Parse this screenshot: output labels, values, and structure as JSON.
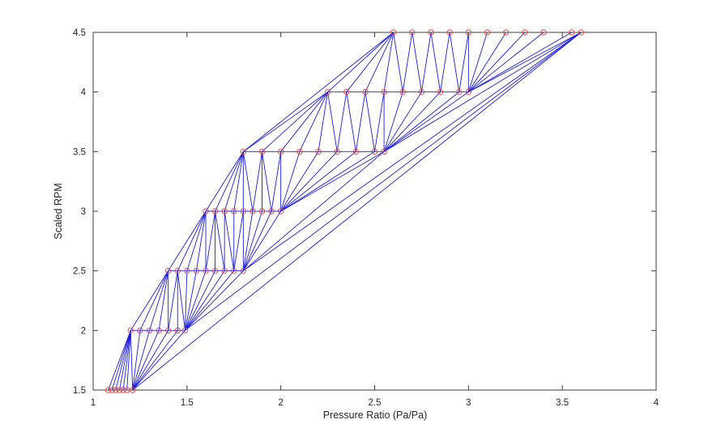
{
  "chart_data": {
    "type": "scatter",
    "subtype": "triangulated-mesh",
    "title": "",
    "xlabel": "Pressure Ratio (Pa/Pa)",
    "ylabel": "Scaled RPM",
    "xlim": [
      1,
      4
    ],
    "ylim": [
      1.5,
      4.5
    ],
    "xticks": [
      1,
      1.5,
      2,
      2.5,
      3,
      3.5,
      4
    ],
    "yticks": [
      1.5,
      2,
      2.5,
      3,
      3.5,
      4,
      4.5
    ],
    "grid": false,
    "legend": null,
    "axis_color": "#3c3c3c",
    "line": {
      "color": "#1c1cd8",
      "width": 0.9
    },
    "marker": {
      "shape": "circle-open",
      "color": "#e05252",
      "radius": 3.2
    },
    "series": [
      {
        "rpm": 1.5,
        "pressure_ratio": [
          1.08,
          1.1,
          1.12,
          1.14,
          1.16,
          1.18,
          1.21
        ]
      },
      {
        "rpm": 2.0,
        "pressure_ratio": [
          1.2,
          1.25,
          1.3,
          1.35,
          1.4,
          1.45,
          1.49
        ]
      },
      {
        "rpm": 2.5,
        "pressure_ratio": [
          1.4,
          1.45,
          1.5,
          1.55,
          1.6,
          1.65,
          1.7,
          1.75,
          1.8
        ]
      },
      {
        "rpm": 3.0,
        "pressure_ratio": [
          1.6,
          1.65,
          1.7,
          1.75,
          1.8,
          1.85,
          1.9,
          1.95,
          2.0
        ]
      },
      {
        "rpm": 3.5,
        "pressure_ratio": [
          1.8,
          1.9,
          2.0,
          2.1,
          2.2,
          2.3,
          2.4,
          2.5,
          2.55
        ]
      },
      {
        "rpm": 4.0,
        "pressure_ratio": [
          2.25,
          2.35,
          2.45,
          2.55,
          2.65,
          2.75,
          2.85,
          2.95,
          3.0
        ]
      },
      {
        "rpm": 4.5,
        "pressure_ratio": [
          2.6,
          2.7,
          2.8,
          2.9,
          3.0,
          3.1,
          3.2,
          3.3,
          3.4,
          3.55,
          3.6
        ]
      }
    ]
  }
}
